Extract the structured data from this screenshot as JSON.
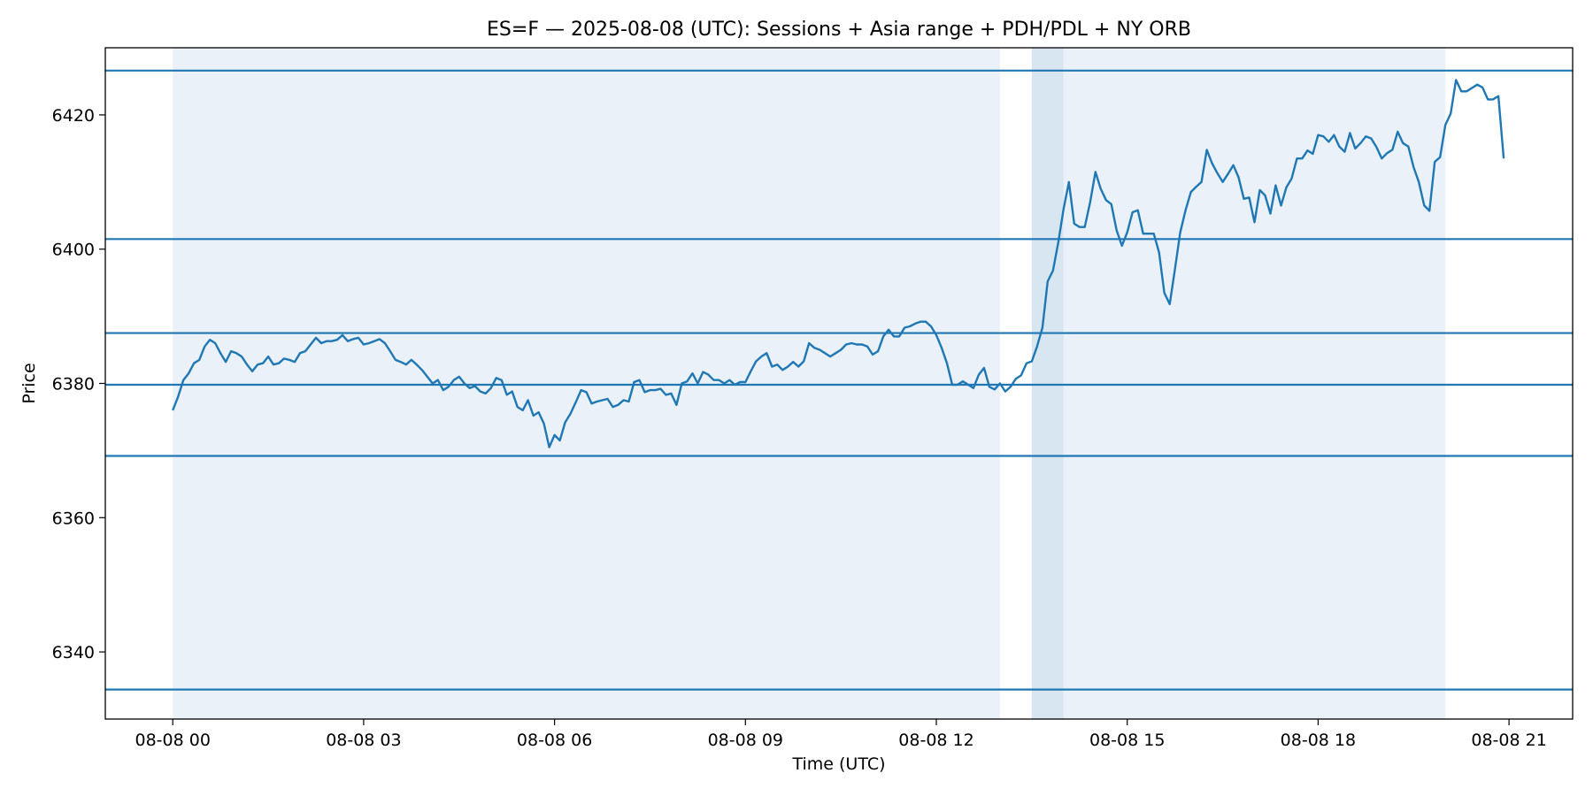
{
  "chart_data": {
    "type": "line",
    "title": "ES=F — 2025-08-08 (UTC): Sessions + Asia range + PDH/PDL + NY ORB",
    "xlabel": "Time (UTC)",
    "ylabel": "Price",
    "xlim": [
      -1.06,
      22.0
    ],
    "ylim": [
      6330,
      6430
    ],
    "x_ticks": [
      {
        "hour": 0,
        "label": "08-08 00"
      },
      {
        "hour": 3,
        "label": "08-08 03"
      },
      {
        "hour": 6,
        "label": "08-08 06"
      },
      {
        "hour": 9,
        "label": "08-08 09"
      },
      {
        "hour": 12,
        "label": "08-08 12"
      },
      {
        "hour": 15,
        "label": "08-08 15"
      },
      {
        "hour": 18,
        "label": "08-08 18"
      },
      {
        "hour": 21,
        "label": "08-08 21"
      }
    ],
    "y_ticks": [
      6340,
      6360,
      6380,
      6400,
      6420
    ],
    "grid": false,
    "colors": {
      "line": "#1f77b4",
      "session_shade": "#eaf1f8",
      "orb_shade": "#d8e6f1",
      "axis": "#000000"
    },
    "session_spans": [
      {
        "start_hour": 0.0,
        "end_hour": 13.0,
        "kind": "session"
      },
      {
        "start_hour": 13.5,
        "end_hour": 20.0,
        "kind": "session"
      },
      {
        "start_hour": 13.5,
        "end_hour": 14.0,
        "kind": "orb"
      }
    ],
    "horizontal_levels": [
      6426.6,
      6401.5,
      6387.5,
      6379.8,
      6369.2,
      6334.4
    ],
    "series": [
      {
        "x_hours": [
          0.0,
          0.083,
          0.167,
          0.25,
          0.333,
          0.417,
          0.5,
          0.583,
          0.667,
          0.75,
          0.833,
          0.917,
          1.0,
          1.083,
          1.167,
          1.25,
          1.333,
          1.417,
          1.5,
          1.583,
          1.667,
          1.75,
          1.833,
          1.917,
          2.0,
          2.083,
          2.167,
          2.25,
          2.333,
          2.417,
          2.5,
          2.583,
          2.667,
          2.75,
          2.833,
          2.917,
          3.0,
          3.083,
          3.167,
          3.25,
          3.333,
          3.417,
          3.5,
          3.583,
          3.667,
          3.75,
          3.833,
          3.917,
          4.0,
          4.083,
          4.167,
          4.25,
          4.333,
          4.417,
          4.5,
          4.583,
          4.667,
          4.75,
          4.833,
          4.917,
          5.0,
          5.083,
          5.167,
          5.25,
          5.333,
          5.417,
          5.5,
          5.583,
          5.667,
          5.75,
          5.833,
          5.917,
          6.0,
          6.083,
          6.167,
          6.25,
          6.333,
          6.417,
          6.5,
          6.583,
          6.667,
          6.75,
          6.833,
          6.917,
          7.0,
          7.083,
          7.167,
          7.25,
          7.333,
          7.417,
          7.5,
          7.583,
          7.667,
          7.75,
          7.833,
          7.917,
          8.0,
          8.083,
          8.167,
          8.25,
          8.333,
          8.417,
          8.5,
          8.583,
          8.667,
          8.75,
          8.833,
          8.917,
          9.0,
          9.083,
          9.167,
          9.25,
          9.333,
          9.417,
          9.5,
          9.583,
          9.667,
          9.75,
          9.833,
          9.917,
          10.0,
          10.083,
          10.167,
          10.25,
          10.333,
          10.417,
          10.5,
          10.583,
          10.667,
          10.75,
          10.833,
          10.917,
          11.0,
          11.083,
          11.167,
          11.25,
          11.333,
          11.417,
          11.5,
          11.583,
          11.667,
          11.75,
          11.833,
          11.917,
          12.0,
          12.083,
          12.167,
          12.25,
          12.333,
          12.417,
          12.5,
          12.583,
          12.667,
          12.75,
          12.833,
          12.917,
          13.0,
          13.083,
          13.167,
          13.25,
          13.333,
          13.417,
          13.5,
          13.583,
          13.667,
          13.75,
          13.833,
          13.917,
          14.0,
          14.083,
          14.167,
          14.25,
          14.333,
          14.417,
          14.5,
          14.583,
          14.667,
          14.75,
          14.833,
          14.917,
          15.0,
          15.083,
          15.167,
          15.25,
          15.333,
          15.417,
          15.5,
          15.583,
          15.667,
          15.75,
          15.833,
          15.917,
          16.0,
          16.083,
          16.167,
          16.25,
          16.333,
          16.417,
          16.5,
          16.583,
          16.667,
          16.75,
          16.833,
          16.917,
          17.0,
          17.083,
          17.167,
          17.25,
          17.333,
          17.417,
          17.5,
          17.583,
          17.667,
          17.75,
          17.833,
          17.917,
          18.0,
          18.083,
          18.167,
          18.25,
          18.333,
          18.417,
          18.5,
          18.583,
          18.667,
          18.75,
          18.833,
          18.917,
          19.0,
          19.083,
          19.167,
          19.25,
          19.333,
          19.417,
          19.5,
          19.583,
          19.667,
          19.75,
          19.833,
          19.917,
          20.0,
          20.083,
          20.167,
          20.25,
          20.333,
          20.417,
          20.5,
          20.583,
          20.667,
          20.75,
          20.833,
          20.917
        ],
        "values": [
          6376.0,
          6378.0,
          6380.5,
          6381.5,
          6383.0,
          6383.5,
          6385.5,
          6386.5,
          6386.0,
          6384.5,
          6383.2,
          6384.8,
          6384.5,
          6384.0,
          6382.8,
          6381.8,
          6382.8,
          6383.0,
          6384.0,
          6382.8,
          6383.0,
          6383.7,
          6383.5,
          6383.2,
          6384.5,
          6384.8,
          6385.8,
          6386.8,
          6386.0,
          6386.3,
          6386.3,
          6386.5,
          6387.2,
          6386.3,
          6386.6,
          6386.8,
          6385.8,
          6386.0,
          6386.3,
          6386.6,
          6386.0,
          6384.8,
          6383.5,
          6383.2,
          6382.8,
          6383.5,
          6382.8,
          6382.0,
          6381.0,
          6380.0,
          6380.5,
          6379.0,
          6379.5,
          6380.5,
          6381.0,
          6380.0,
          6379.3,
          6379.6,
          6378.8,
          6378.5,
          6379.3,
          6380.8,
          6380.5,
          6378.3,
          6378.8,
          6376.5,
          6376.0,
          6377.5,
          6375.2,
          6375.7,
          6374.0,
          6370.5,
          6372.3,
          6371.5,
          6374.2,
          6375.5,
          6377.2,
          6379.0,
          6378.7,
          6377.0,
          6377.3,
          6377.5,
          6377.7,
          6376.5,
          6376.8,
          6377.5,
          6377.3,
          6380.2,
          6380.5,
          6378.7,
          6379.0,
          6379.0,
          6379.2,
          6378.3,
          6378.5,
          6376.8,
          6380.0,
          6380.3,
          6381.5,
          6380.0,
          6381.7,
          6381.3,
          6380.5,
          6380.5,
          6380.0,
          6380.5,
          6379.8,
          6380.2,
          6380.2,
          6381.8,
          6383.3,
          6384.0,
          6384.5,
          6382.5,
          6382.8,
          6382.0,
          6382.5,
          6383.2,
          6382.5,
          6383.3,
          6386.0,
          6385.3,
          6385.0,
          6384.5,
          6384.0,
          6384.5,
          6385.0,
          6385.8,
          6386.0,
          6385.8,
          6385.8,
          6385.5,
          6384.3,
          6384.8,
          6387.0,
          6388.0,
          6387.0,
          6387.0,
          6388.3,
          6388.5,
          6388.9,
          6389.2,
          6389.2,
          6388.5,
          6387.2,
          6385.3,
          6383.0,
          6379.8,
          6379.8,
          6380.3,
          6379.8,
          6379.3,
          6381.3,
          6382.3,
          6379.5,
          6379.1,
          6380.0,
          6378.8,
          6379.5,
          6380.7,
          6381.2,
          6383.0,
          6383.3,
          6385.5,
          6388.3,
          6395.2,
          6396.8,
          6401.0,
          6406.0,
          6410.0,
          6403.8,
          6403.3,
          6403.3,
          6407.0,
          6411.5,
          6409.0,
          6407.3,
          6406.7,
          6402.8,
          6400.5,
          6402.5,
          6405.5,
          6405.8,
          6402.3,
          6402.3,
          6402.3,
          6399.5,
          6393.5,
          6391.8,
          6397.0,
          6402.5,
          6405.8,
          6408.5,
          6409.3,
          6410.0,
          6414.8,
          6412.8,
          6411.3,
          6410.0,
          6411.2,
          6412.5,
          6410.7,
          6407.5,
          6407.7,
          6404.0,
          6408.8,
          6408.0,
          6405.3,
          6409.5,
          6406.5,
          6409.2,
          6410.5,
          6413.5,
          6413.5,
          6414.7,
          6414.2,
          6417.0,
          6416.8,
          6416.0,
          6417.0,
          6415.3,
          6414.5,
          6417.3,
          6415.0,
          6415.8,
          6416.8,
          6416.5,
          6415.2,
          6413.5,
          6414.3,
          6414.8,
          6417.5,
          6415.8,
          6415.3,
          6412.2,
          6410.0,
          6406.5,
          6405.7,
          6413.0,
          6413.7,
          6418.5,
          6420.2,
          6425.2,
          6423.5,
          6423.5,
          6424.0,
          6424.5,
          6424.1,
          6422.3,
          6422.3,
          6422.8,
          6413.5
        ]
      }
    ]
  }
}
